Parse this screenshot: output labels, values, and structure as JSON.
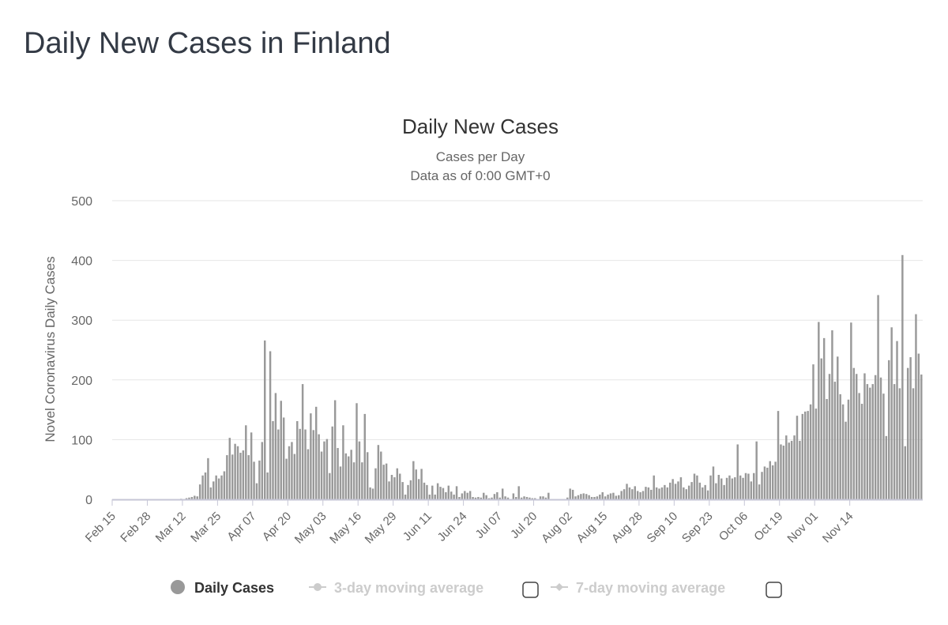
{
  "page": {
    "title": "Daily New Cases in Finland"
  },
  "colors": {
    "bar": "#999999",
    "grid": "#e6e6e6",
    "axis": "#c6c6d6",
    "legend_inactive": "#cccccc"
  },
  "chart_data": {
    "type": "bar",
    "title": "Daily New Cases",
    "subtitle": [
      "Cases per Day",
      "Data as of 0:00 GMT+0"
    ],
    "xlabel": "",
    "ylabel": "Novel Coronavirus Daily Cases",
    "ylim": [
      0,
      500
    ],
    "yticks": [
      0,
      100,
      200,
      300,
      400,
      500
    ],
    "grid": true,
    "legend_position": "bottom",
    "x_start": "Feb 15",
    "x_end": "Nov 14",
    "x_tick_labels": [
      "Feb 15",
      "Feb 28",
      "Mar 12",
      "Mar 25",
      "Apr 07",
      "Apr 20",
      "May 03",
      "May 16",
      "May 29",
      "Jun 11",
      "Jun 24",
      "Jul 07",
      "Jul 20",
      "Aug 02",
      "Aug 15",
      "Aug 28",
      "Sep 10",
      "Sep 23",
      "Oct 06",
      "Oct 19",
      "Nov 01",
      "Nov 14"
    ],
    "series": [
      {
        "name": "Daily Cases",
        "values": [
          0,
          0,
          0,
          0,
          0,
          0,
          0,
          0,
          0,
          0,
          0,
          0,
          0,
          0,
          0,
          0,
          0,
          0,
          0,
          0,
          0,
          0,
          0,
          0,
          0,
          1,
          0,
          2,
          3,
          4,
          6,
          5,
          25,
          40,
          45,
          69,
          20,
          30,
          40,
          35,
          40,
          47,
          74,
          103,
          75,
          93,
          89,
          78,
          82,
          124,
          74,
          112,
          63,
          27,
          65,
          96,
          266,
          45,
          248,
          131,
          178,
          117,
          165,
          137,
          68,
          89,
          96,
          76,
          131,
          118,
          193,
          117,
          84,
          144,
          116,
          155,
          109,
          80,
          97,
          101,
          44,
          122,
          166,
          86,
          55,
          124,
          77,
          72,
          83,
          62,
          161,
          97,
          62,
          143,
          79,
          20,
          18,
          52,
          91,
          80,
          58,
          60,
          30,
          41,
          37,
          52,
          43,
          29,
          8,
          24,
          32,
          64,
          50,
          34,
          51,
          28,
          24,
          8,
          23,
          8,
          27,
          21,
          19,
          12,
          23,
          13,
          8,
          22,
          4,
          10,
          14,
          11,
          14,
          4,
          3,
          4,
          3,
          11,
          7,
          2,
          3,
          9,
          12,
          3,
          18,
          5,
          3,
          0,
          10,
          4,
          22,
          3,
          5,
          4,
          3,
          2,
          2,
          0,
          5,
          5,
          3,
          11,
          0,
          0,
          0,
          0,
          0,
          0,
          3,
          18,
          16,
          5,
          7,
          9,
          10,
          9,
          7,
          4,
          4,
          5,
          8,
          12,
          5,
          8,
          10,
          11,
          6,
          7,
          14,
          17,
          26,
          20,
          17,
          22,
          14,
          12,
          14,
          21,
          20,
          16,
          40,
          20,
          18,
          20,
          24,
          20,
          28,
          34,
          26,
          30,
          37,
          20,
          17,
          23,
          29,
          43,
          40,
          28,
          20,
          24,
          15,
          40,
          55,
          27,
          41,
          35,
          24,
          36,
          40,
          35,
          37,
          92,
          40,
          36,
          44,
          43,
          30,
          44,
          97,
          25,
          46,
          55,
          53,
          64,
          57,
          63,
          148,
          92,
          90,
          107,
          95,
          98,
          107,
          140,
          98,
          143,
          147,
          148,
          159,
          226,
          152,
          297,
          236,
          270,
          168,
          210,
          283,
          197,
          239,
          176,
          159,
          130,
          167,
          296,
          220,
          210,
          178,
          160,
          211,
          193,
          187,
          193,
          208,
          342,
          204,
          177,
          106,
          233,
          288,
          193,
          265,
          186,
          409,
          89,
          220,
          238,
          186,
          310,
          244,
          209
        ]
      }
    ]
  },
  "legend": {
    "items": [
      {
        "label": "Daily Cases",
        "active": true
      },
      {
        "label": "3-day moving average",
        "active": false
      },
      {
        "label": "7-day moving average",
        "active": false
      }
    ]
  }
}
